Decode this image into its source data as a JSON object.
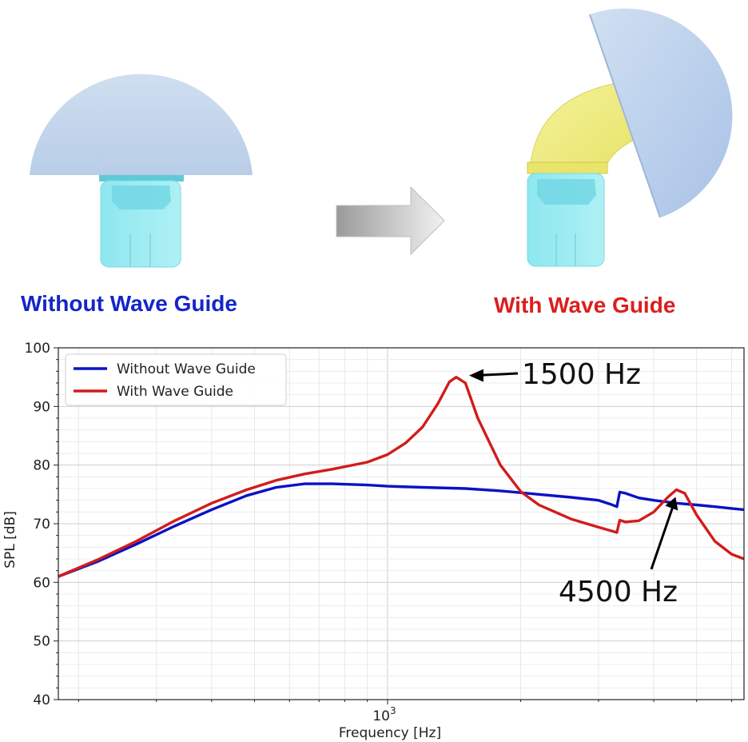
{
  "illustration": {
    "left_caption": "Without Wave Guide",
    "right_caption": "With Wave Guide",
    "left_caption_color": "#1426c8",
    "right_caption_color": "#dc1e1e",
    "arrow_icon": "right-arrow-icon"
  },
  "chart_data": {
    "type": "line",
    "xscale": "log",
    "xlim": [
      180,
      6400
    ],
    "ylim": [
      40,
      100
    ],
    "yticks": [
      40,
      50,
      60,
      70,
      80,
      90,
      100
    ],
    "xtick_labels": [
      {
        "value": 1000,
        "base": "10",
        "exp": "3"
      }
    ],
    "xlabel": "Frequency [Hz]",
    "ylabel": "SPL [dB]",
    "grid": true,
    "legend_position": "top-left",
    "series": [
      {
        "name": "Without Wave Guide",
        "color": "#0b12c4",
        "x": [
          180,
          220,
          270,
          330,
          400,
          480,
          560,
          650,
          750,
          900,
          1000,
          1200,
          1500,
          1800,
          2200,
          2600,
          3000,
          3200,
          3300,
          3350,
          3450,
          3700,
          4000,
          4500,
          5000,
          5500,
          6000,
          6400
        ],
        "y": [
          61,
          63.5,
          66.5,
          69.6,
          72.4,
          74.8,
          76.2,
          76.8,
          76.8,
          76.6,
          76.4,
          76.2,
          76.0,
          75.6,
          75.0,
          74.5,
          74.0,
          73.3,
          72.9,
          75.4,
          75.2,
          74.4,
          74.0,
          73.5,
          73.2,
          72.9,
          72.6,
          72.4
        ]
      },
      {
        "name": "With Wave Guide",
        "color": "#d21c1c",
        "x": [
          180,
          220,
          270,
          330,
          400,
          480,
          560,
          650,
          750,
          900,
          1000,
          1100,
          1200,
          1300,
          1380,
          1430,
          1500,
          1600,
          1800,
          2000,
          2200,
          2600,
          3000,
          3200,
          3300,
          3350,
          3450,
          3700,
          4000,
          4300,
          4500,
          4700,
          5000,
          5500,
          6000,
          6400
        ],
        "y": [
          61,
          63.8,
          67.0,
          70.5,
          73.5,
          75.8,
          77.4,
          78.5,
          79.3,
          80.5,
          81.8,
          83.8,
          86.5,
          90.5,
          94.2,
          95.0,
          94.0,
          88.0,
          80.0,
          75.5,
          73.2,
          70.8,
          69.4,
          68.8,
          68.5,
          70.6,
          70.3,
          70.5,
          72.0,
          74.5,
          75.8,
          75.2,
          71.5,
          67.0,
          64.8,
          64.0
        ]
      }
    ],
    "annotations": [
      {
        "text": "1500 Hz",
        "x": 1430,
        "y": 95.0
      },
      {
        "text": "4500 Hz",
        "x": 4500,
        "y": 75.8
      }
    ]
  }
}
